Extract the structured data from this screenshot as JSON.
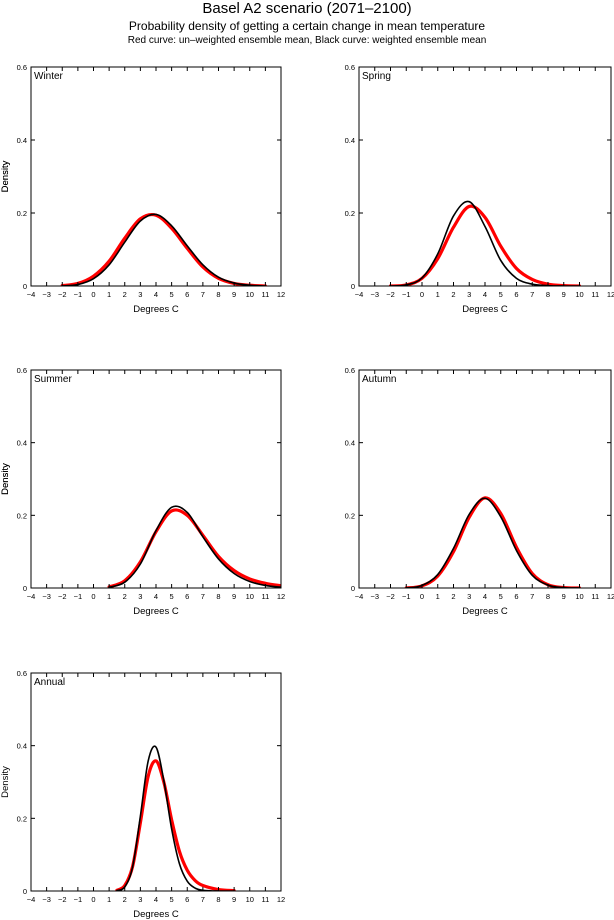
{
  "figure": {
    "title": "Basel A2 scenario (2071–2100)",
    "subtitle": "Probability density of getting a certain change in mean temperature",
    "caption": "Red curve: un–weighted ensemble mean, Black curve: weighted ensemble mean"
  },
  "colors": {
    "unweighted": "#ff0000",
    "weighted": "#000000"
  },
  "chart_data": [
    {
      "type": "line",
      "panel_label": "Winter",
      "xlabel": "Degrees C",
      "ylabel": "Density",
      "xlim": [
        -4,
        12
      ],
      "ylim": [
        0,
        0.6
      ],
      "xticks": [
        -4,
        -3,
        -2,
        -1,
        0,
        1,
        2,
        3,
        4,
        5,
        6,
        7,
        8,
        9,
        10,
        11,
        12
      ],
      "yticks": [
        0,
        0.2,
        0.4,
        0.6
      ],
      "x": [
        -2,
        -1,
        0,
        1,
        2,
        3,
        4,
        5,
        6,
        7,
        8,
        9,
        10,
        11
      ],
      "series": [
        {
          "role": "unweighted",
          "values": [
            0.001,
            0.007,
            0.027,
            0.068,
            0.131,
            0.184,
            0.194,
            0.158,
            0.103,
            0.052,
            0.021,
            0.007,
            0.002,
            0.0
          ]
        },
        {
          "role": "weighted",
          "values": [
            0.0,
            0.004,
            0.02,
            0.058,
            0.12,
            0.178,
            0.196,
            0.165,
            0.11,
            0.058,
            0.024,
            0.008,
            0.002,
            0.0
          ]
        }
      ]
    },
    {
      "type": "line",
      "panel_label": "Spring",
      "xlabel": "Degrees C",
      "ylabel": "Density",
      "xlim": [
        -4,
        12
      ],
      "ylim": [
        0,
        0.6
      ],
      "xticks": [
        -4,
        -3,
        -2,
        -1,
        0,
        1,
        2,
        3,
        4,
        5,
        6,
        7,
        8,
        9,
        10,
        11,
        12
      ],
      "yticks": [
        0,
        0.2,
        0.4,
        0.6
      ],
      "x": [
        -2,
        -1,
        0,
        1,
        2,
        3,
        4,
        5,
        6,
        7,
        8,
        9,
        10
      ],
      "series": [
        {
          "role": "unweighted",
          "values": [
            0.0,
            0.003,
            0.021,
            0.075,
            0.161,
            0.218,
            0.188,
            0.109,
            0.048,
            0.018,
            0.005,
            0.001,
            0.0
          ]
        },
        {
          "role": "weighted",
          "values": [
            0.0,
            0.003,
            0.022,
            0.088,
            0.192,
            0.231,
            0.163,
            0.07,
            0.021,
            0.005,
            0.001,
            0.0,
            0.0
          ]
        }
      ]
    },
    {
      "type": "line",
      "panel_label": "Summer",
      "xlabel": "Degrees C",
      "ylabel": "Density",
      "xlim": [
        -4,
        12
      ],
      "ylim": [
        0,
        0.6
      ],
      "xticks": [
        -4,
        -3,
        -2,
        -1,
        0,
        1,
        2,
        3,
        4,
        5,
        6,
        7,
        8,
        9,
        10,
        11,
        12
      ],
      "yticks": [
        0,
        0.2,
        0.4,
        0.6
      ],
      "x": [
        1,
        2,
        3,
        4,
        5,
        6,
        7,
        8,
        9,
        10,
        11,
        12
      ],
      "series": [
        {
          "role": "unweighted",
          "values": [
            0.003,
            0.02,
            0.072,
            0.155,
            0.212,
            0.2,
            0.145,
            0.087,
            0.048,
            0.025,
            0.013,
            0.006
          ]
        },
        {
          "role": "weighted",
          "values": [
            0.002,
            0.016,
            0.066,
            0.158,
            0.222,
            0.208,
            0.141,
            0.08,
            0.04,
            0.018,
            0.007,
            0.002
          ]
        }
      ]
    },
    {
      "type": "line",
      "panel_label": "Autumn",
      "xlabel": "Degrees C",
      "ylabel": "Density",
      "xlim": [
        -4,
        12
      ],
      "ylim": [
        0,
        0.6
      ],
      "xticks": [
        -4,
        -3,
        -2,
        -1,
        0,
        1,
        2,
        3,
        4,
        5,
        6,
        7,
        8,
        9,
        10,
        11,
        12
      ],
      "yticks": [
        0,
        0.2,
        0.4,
        0.6
      ],
      "x": [
        -1,
        0,
        1,
        2,
        3,
        4,
        5,
        6,
        7,
        8,
        9,
        10
      ],
      "series": [
        {
          "role": "unweighted",
          "values": [
            0.0,
            0.006,
            0.033,
            0.1,
            0.195,
            0.248,
            0.205,
            0.112,
            0.04,
            0.009,
            0.001,
            0.0
          ]
        },
        {
          "role": "weighted",
          "values": [
            0.0,
            0.007,
            0.037,
            0.109,
            0.203,
            0.247,
            0.196,
            0.103,
            0.035,
            0.008,
            0.001,
            0.0
          ]
        }
      ]
    },
    {
      "type": "line",
      "panel_label": "Annual",
      "xlabel": "Degrees C",
      "ylabel": "Density",
      "xlim": [
        -4,
        12
      ],
      "ylim": [
        0,
        0.6
      ],
      "xticks": [
        -4,
        -3,
        -2,
        -1,
        0,
        1,
        2,
        3,
        4,
        5,
        6,
        7,
        8,
        9,
        10,
        11,
        12
      ],
      "yticks": [
        0,
        0.2,
        0.4,
        0.6
      ],
      "x": [
        1.5,
        2,
        2.5,
        3,
        3.5,
        4,
        4.5,
        5,
        5.5,
        6,
        6.5,
        7,
        8,
        9
      ],
      "series": [
        {
          "role": "unweighted",
          "values": [
            0.002,
            0.015,
            0.067,
            0.188,
            0.316,
            0.358,
            0.3,
            0.196,
            0.109,
            0.057,
            0.029,
            0.015,
            0.004,
            0.001
          ]
        },
        {
          "role": "weighted",
          "values": [
            0.001,
            0.011,
            0.066,
            0.206,
            0.358,
            0.396,
            0.304,
            0.171,
            0.075,
            0.027,
            0.008,
            0.002,
            0.0,
            0.0
          ]
        }
      ]
    }
  ]
}
